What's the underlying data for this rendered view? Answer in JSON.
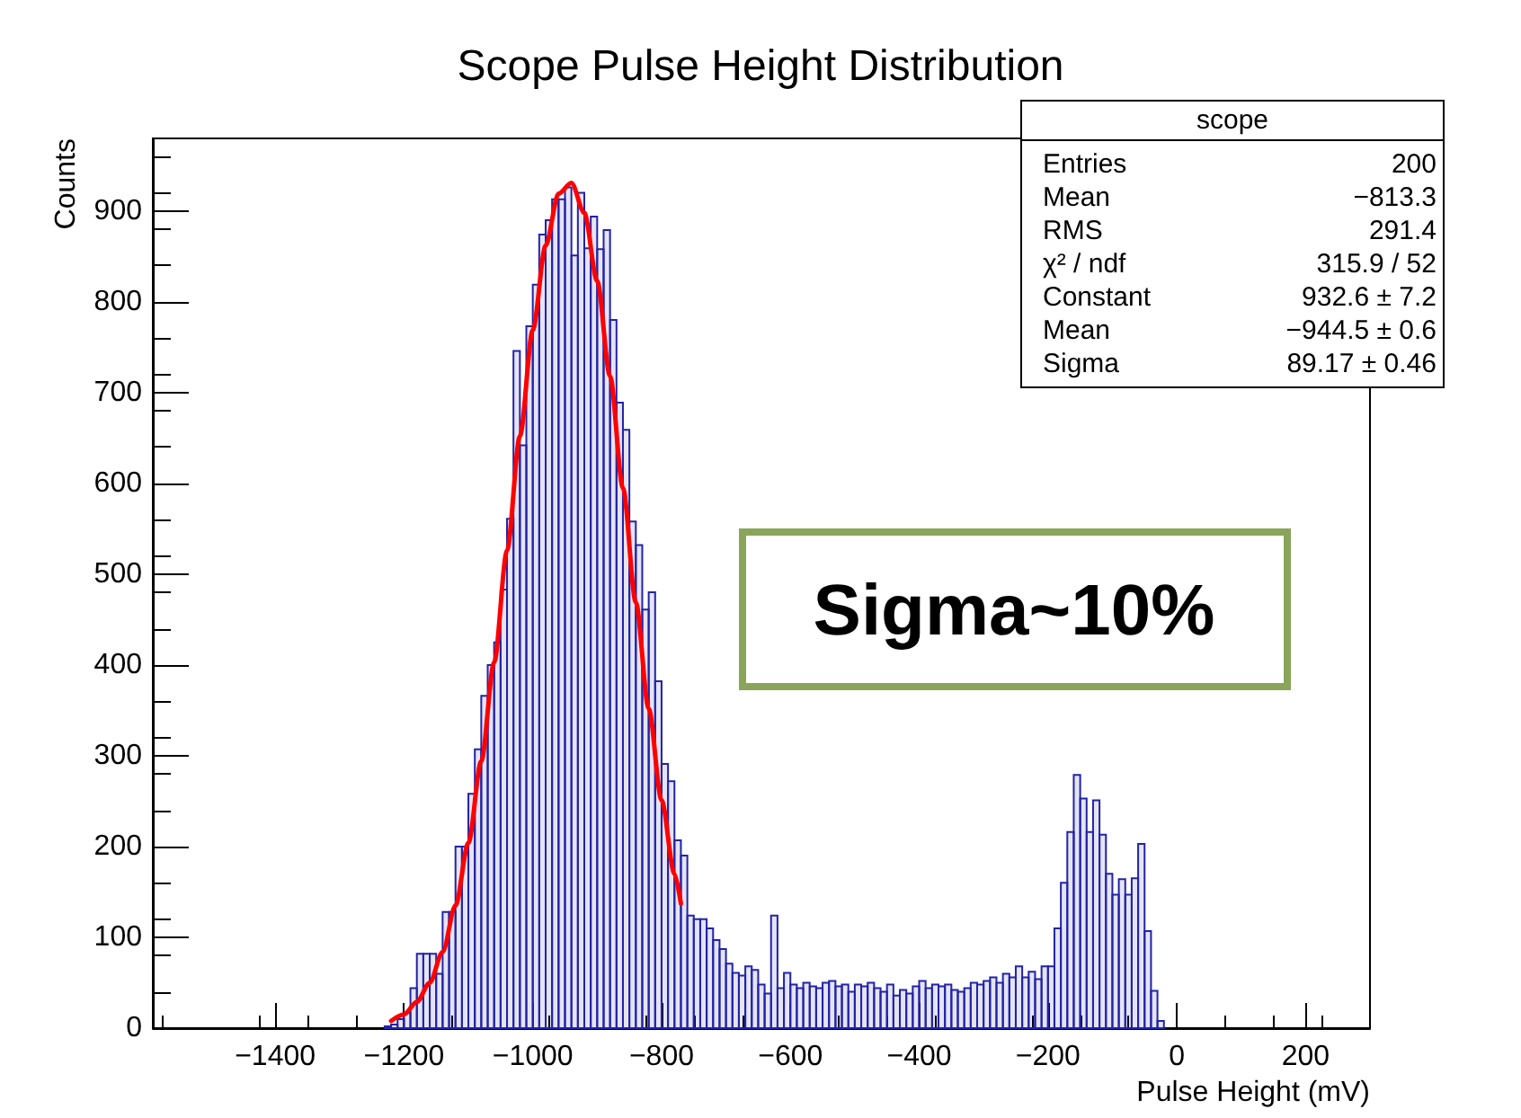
{
  "chart_data": {
    "type": "histogram",
    "title": "Scope Pulse Height Distribution",
    "xlabel": "Pulse Height (mV)",
    "ylabel": "Counts",
    "bins": [
      -1230,
      -1220,
      -1210,
      -1200,
      -1190,
      -1180,
      -1170,
      -1160,
      -1150,
      -1140,
      -1130,
      -1120,
      -1110,
      -1100,
      -1090,
      -1080,
      -1070,
      -1060,
      -1050,
      -1040,
      -1030,
      -1020,
      -1010,
      -1000,
      -990,
      -980,
      -970,
      -960,
      -950,
      -940,
      -930,
      -920,
      -910,
      -900,
      -890,
      -880,
      -870,
      -860,
      -850,
      -840,
      -830,
      -820,
      -810,
      -800,
      -790,
      -780,
      -770,
      -760,
      -750,
      -740,
      -730,
      -720,
      -710,
      -700,
      -690,
      -680,
      -670,
      -660,
      -650,
      -640,
      -630,
      -620,
      -610,
      -600,
      -590,
      -580,
      -570,
      -560,
      -550,
      -540,
      -530,
      -520,
      -510,
      -500,
      -490,
      -480,
      -470,
      -460,
      -450,
      -440,
      -430,
      -420,
      -410,
      -400,
      -390,
      -380,
      -370,
      -360,
      -350,
      -340,
      -330,
      -320,
      -310,
      -300,
      -290,
      -280,
      -270,
      -260,
      -250,
      -240,
      -230,
      -220,
      -210,
      -200,
      -190,
      -180,
      -170,
      -160,
      -150,
      -140,
      -130,
      -120,
      -110,
      -100,
      -90,
      -80,
      -70,
      -60,
      -50,
      -40,
      -30,
      -20
    ],
    "series": [
      {
        "color": "#2323a8",
        "values": [
          2,
          4,
          10,
          17,
          44,
          82,
          82,
          82,
          60,
          128,
          128,
          200,
          200,
          258,
          307,
          366,
          400,
          425,
          483,
          561,
          746,
          642,
          773,
          819,
          874,
          890,
          913,
          913,
          926,
          851,
          920,
          859,
          894,
          858,
          879,
          780,
          689,
          659,
          558,
          532,
          461,
          480,
          382,
          291,
          272,
          207,
          190,
          124,
          120,
          120,
          110,
          97,
          87,
          71,
          61,
          58,
          68,
          64,
          48,
          38,
          124,
          44,
          61,
          48,
          44,
          50,
          46,
          44,
          50,
          52,
          46,
          48,
          40,
          48,
          46,
          50,
          44,
          40,
          48,
          36,
          42,
          38,
          46,
          52,
          44,
          48,
          46,
          48,
          42,
          40,
          44,
          50,
          48,
          52,
          56,
          50,
          60,
          56,
          68,
          56,
          62,
          54,
          68,
          68,
          110,
          160,
          216,
          279,
          253,
          216,
          251,
          213,
          170,
          147,
          164,
          147,
          165,
          203,
          107,
          41,
          8
        ]
      },
      {
        "type": "line",
        "color": "#ff0000",
        "x": [
          -1220,
          -1200,
          -1180,
          -1160,
          -1140,
          -1120,
          -1100,
          -1080,
          -1060,
          -1040,
          -1020,
          -1000,
          -980,
          -960,
          -940,
          -920,
          -900,
          -880,
          -860,
          -840,
          -820,
          -800,
          -780,
          -770
        ],
        "values": [
          8,
          15,
          29,
          50,
          84,
          135,
          204,
          294,
          403,
          526,
          652,
          769,
          862,
          919,
          931,
          898,
          823,
          718,
          595,
          469,
          352,
          251,
          170,
          137
        ]
      }
    ],
    "xlim": [
      -1590,
      300
    ],
    "xticks": [
      -1400,
      -1200,
      -1000,
      -800,
      -600,
      -400,
      -200,
      0,
      200
    ],
    "ylim": [
      0,
      980
    ],
    "yticks": [
      0,
      100,
      200,
      300,
      400,
      500,
      600,
      700,
      800,
      900
    ],
    "annotations": [
      "scope",
      "Entries",
      "200",
      "Mean",
      "−813.3",
      "RMS",
      "291.4",
      "χ² / ndf",
      "315.9 / 52",
      "Constant",
      "932.6 ± 7.2",
      "Mean",
      "−944.5 ± 0.6",
      "Sigma",
      "89.17 ± 0.46",
      "Sigma~10%"
    ]
  }
}
